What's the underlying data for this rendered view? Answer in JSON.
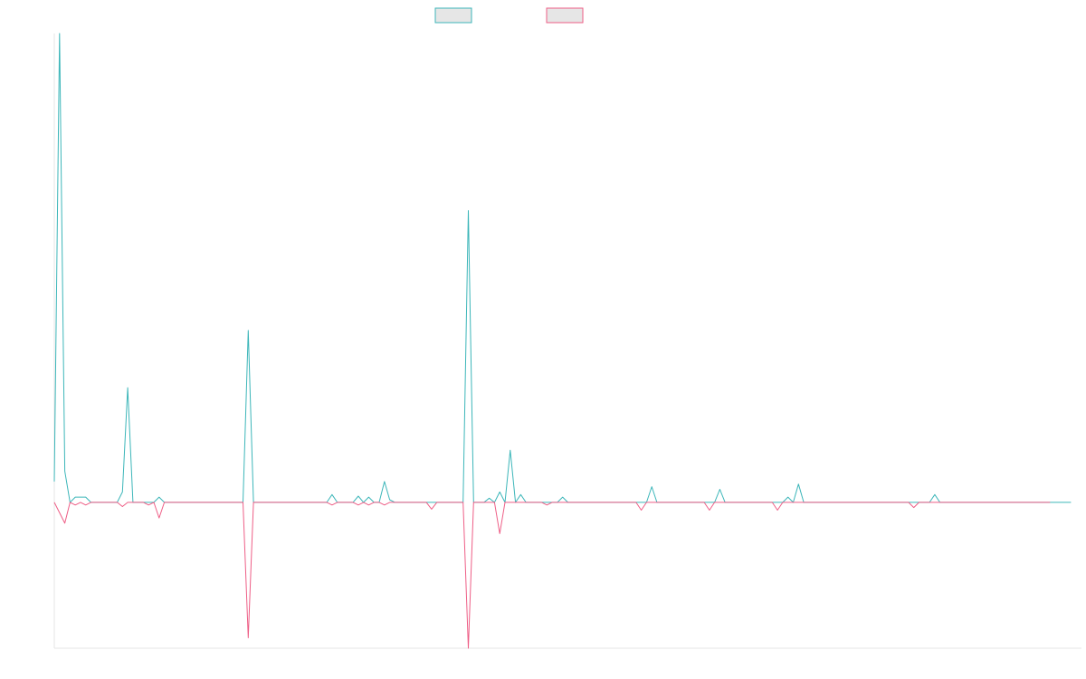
{
  "colors": {
    "series_a": "#3cb6b9",
    "series_a_fill": "#e6e6e6",
    "series_b": "#ee5e86",
    "series_b_fill": "#e6e6e6",
    "axis": "#e6e6e6"
  },
  "chart_data": {
    "type": "line",
    "title": "",
    "xlabel": "",
    "ylabel": "",
    "grid": false,
    "legend_position": "top-center",
    "xlim": [
      0,
      196
    ],
    "ylim": [
      -28,
      90
    ],
    "series": [
      {
        "values": [
          4,
          90,
          6,
          0,
          1,
          1,
          1,
          0,
          0,
          0,
          0,
          0,
          0,
          2,
          22,
          0,
          0,
          0,
          0,
          0,
          1,
          0,
          0,
          0,
          0,
          0,
          0,
          0,
          0,
          0,
          0,
          0,
          0,
          0,
          0,
          0,
          0,
          33,
          0,
          0,
          0,
          0,
          0,
          0,
          0,
          0,
          0,
          0,
          0,
          0,
          0,
          0,
          0,
          1.5,
          0,
          0,
          0,
          0,
          1.2,
          0,
          1,
          0,
          0,
          4,
          0.5,
          0,
          0,
          0,
          0,
          0,
          0,
          0,
          0,
          0,
          0,
          0,
          0,
          0,
          0,
          56,
          0,
          0,
          0,
          0.8,
          0,
          2,
          0,
          10,
          0,
          1.5,
          0,
          0,
          0,
          0,
          0,
          0,
          0,
          1,
          0,
          0,
          0,
          0,
          0,
          0,
          0,
          0,
          0,
          0,
          0,
          0,
          0,
          0,
          0,
          0,
          3,
          0,
          0,
          0,
          0,
          0,
          0,
          0,
          0,
          0,
          0,
          0,
          0,
          2.5,
          0,
          0,
          0,
          0,
          0,
          0,
          0,
          0,
          0,
          0,
          0,
          0,
          1,
          0,
          3.5,
          0,
          0,
          0,
          0,
          0,
          0,
          0,
          0,
          0,
          0,
          0,
          0,
          0,
          0,
          0,
          0,
          0,
          0,
          0,
          0,
          0,
          0,
          0,
          0,
          0,
          1.5,
          0,
          0,
          0,
          0,
          0,
          0,
          0,
          0,
          0,
          0,
          0,
          0,
          0,
          0,
          0,
          0,
          0,
          0,
          0,
          0,
          0,
          0,
          0,
          0,
          0,
          0
        ]
      },
      {
        "values": [
          0,
          -2,
          -4,
          0,
          -0.5,
          0,
          -0.5,
          0,
          0,
          0,
          0,
          0,
          0,
          -0.8,
          0,
          0,
          0,
          0,
          -0.5,
          0,
          -3,
          0,
          0,
          0,
          0,
          0,
          0,
          0,
          0,
          0,
          0,
          0,
          0,
          0,
          0,
          0,
          0,
          -26,
          0,
          0,
          0,
          0,
          0,
          0,
          0,
          0,
          0,
          0,
          0,
          0,
          0,
          0,
          0,
          -0.5,
          0,
          0,
          0,
          0,
          -0.5,
          0,
          -0.5,
          0,
          0,
          -0.5,
          0,
          0,
          0,
          0,
          0,
          0,
          0,
          0,
          -1.3,
          0,
          0,
          0,
          0,
          0,
          0,
          -28,
          0,
          0,
          0,
          0,
          0,
          -6,
          0,
          0,
          0,
          0,
          0,
          0,
          0,
          0,
          -0.5,
          0,
          0,
          0,
          0,
          0,
          0,
          0,
          0,
          0,
          0,
          0,
          0,
          0,
          0,
          0,
          0,
          0,
          -1.5,
          0,
          0,
          0,
          0,
          0,
          0,
          0,
          0,
          0,
          0,
          0,
          0,
          -1.5,
          0,
          0,
          0,
          0,
          0,
          0,
          0,
          0,
          0,
          0,
          0,
          0,
          -1.5,
          0,
          0,
          0,
          0,
          0,
          0,
          0,
          0,
          0,
          0,
          0,
          0,
          0,
          0,
          0,
          0,
          0,
          0,
          0,
          0,
          0,
          0,
          0,
          0,
          0,
          -1,
          0,
          0,
          0,
          0,
          0,
          0,
          0,
          0,
          0,
          0,
          0,
          0,
          0,
          0,
          0,
          0,
          0,
          0,
          0,
          0,
          0,
          0,
          0,
          0,
          0,
          0
        ]
      }
    ]
  }
}
